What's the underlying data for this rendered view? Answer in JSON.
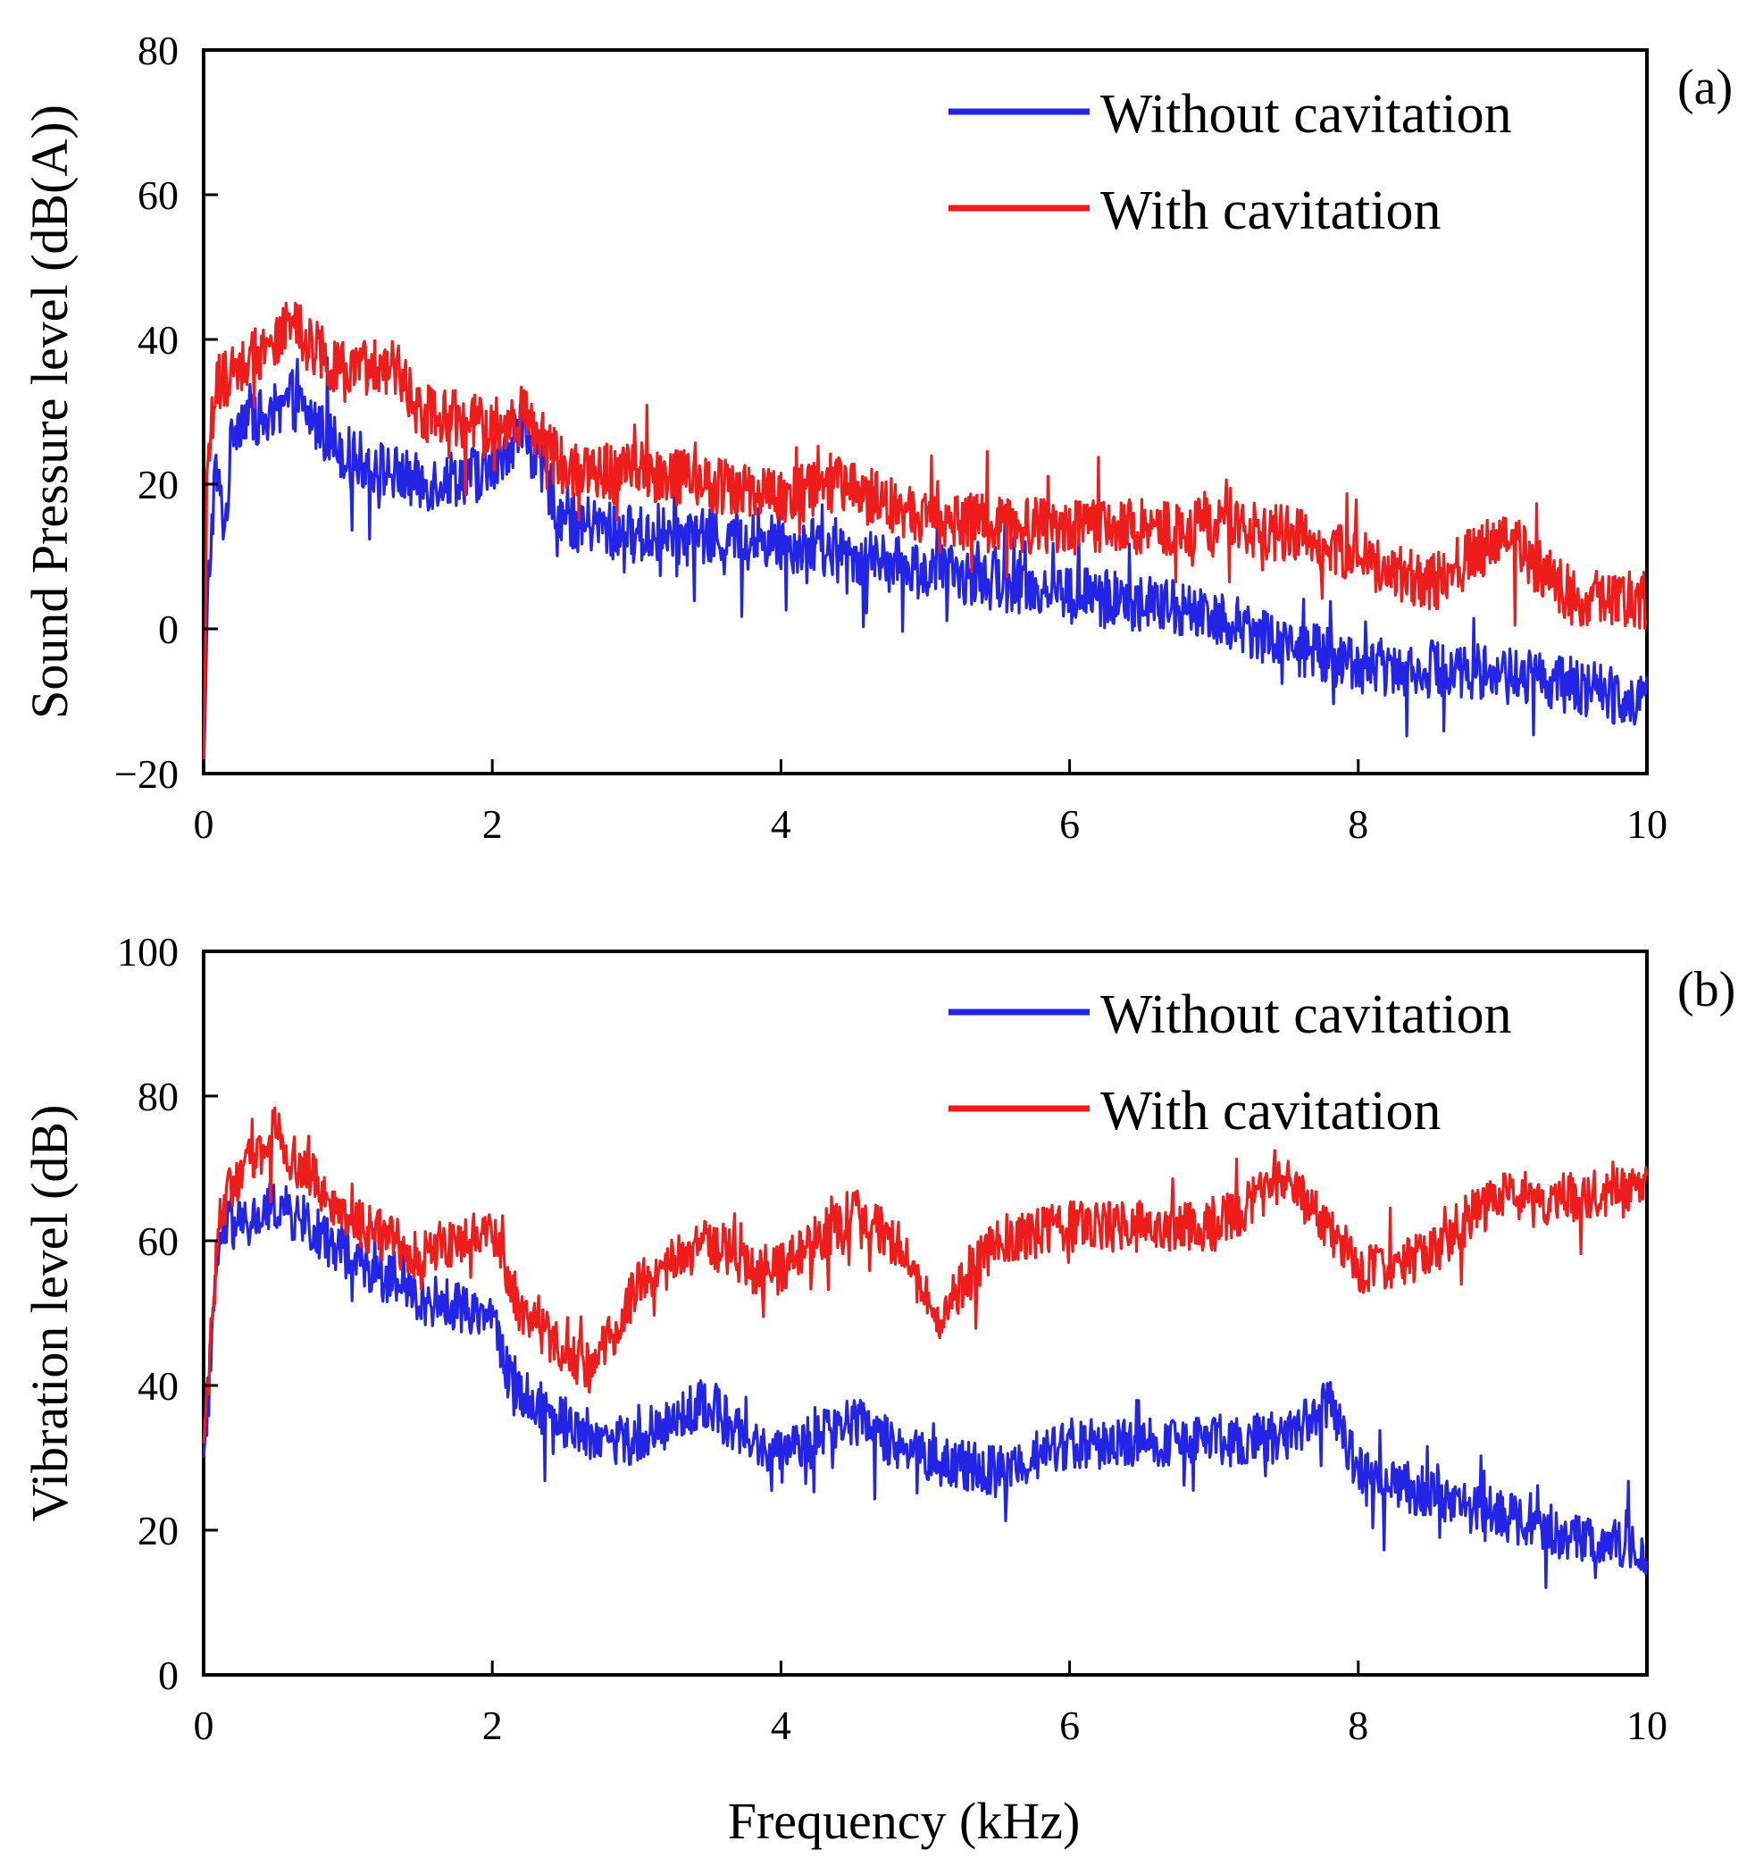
{
  "figure": {
    "xlabel": "Frequency (kHz)"
  },
  "chart_data": [
    {
      "type": "line",
      "panel_label": "(a)",
      "ylabel": "Sound Pressure level (dB(A))",
      "xlim": [
        0,
        10
      ],
      "ylim": [
        -20,
        80
      ],
      "xticks": [
        "0",
        "2",
        "4",
        "6",
        "8",
        "10"
      ],
      "yticks": [
        "−20",
        "0",
        "20",
        "40",
        "60",
        "80"
      ],
      "grid": false,
      "legend_position": "top-right",
      "series": [
        {
          "name": "Without cavitation",
          "color": "#2424e6",
          "noise": 4,
          "x": [
            0,
            0.03,
            0.08,
            0.15,
            0.2,
            0.3,
            0.5,
            0.6,
            1.0,
            1.5,
            2.0,
            2.2,
            2.5,
            3.0,
            4.0,
            5.0,
            6.0,
            7.0,
            7.5,
            8.0,
            9.0,
            10.0
          ],
          "y": [
            -20,
            5,
            22,
            14,
            28,
            30,
            28,
            32,
            24,
            20,
            22,
            28,
            15,
            13,
            12,
            8,
            5,
            2,
            -2,
            -5,
            -6,
            -10
          ]
        },
        {
          "name": "With cavitation",
          "color": "#ef1c1c",
          "noise": 4,
          "x": [
            0,
            0.03,
            0.1,
            0.2,
            0.5,
            0.6,
            1.0,
            1.3,
            1.5,
            2.0,
            2.2,
            2.5,
            3.0,
            4.0,
            4.4,
            5.0,
            6.0,
            7.0,
            7.5,
            8.0,
            8.5,
            9.0,
            9.5,
            10.0
          ],
          "y": [
            -20,
            25,
            34,
            36,
            40,
            42,
            35,
            37,
            30,
            28,
            30,
            22,
            22,
            18,
            20,
            15,
            14,
            14,
            13,
            10,
            6,
            13,
            4,
            4
          ]
        }
      ]
    },
    {
      "type": "line",
      "panel_label": "(b)",
      "ylabel": "Vibration level (dB)",
      "xlim": [
        0,
        10
      ],
      "ylim": [
        0,
        100
      ],
      "xticks": [
        "0",
        "2",
        "4",
        "6",
        "8",
        "10"
      ],
      "yticks": [
        "0",
        "20",
        "40",
        "60",
        "80",
        "100"
      ],
      "grid": false,
      "legend_position": "top-right",
      "series": [
        {
          "name": "Without cavitation",
          "color": "#2424e6",
          "noise": 3.5,
          "x": [
            0,
            0.1,
            0.15,
            0.3,
            0.5,
            1.0,
            1.5,
            2.0,
            2.1,
            2.3,
            2.7,
            3.0,
            3.5,
            3.7,
            4.0,
            4.5,
            5.0,
            5.5,
            6.0,
            7.0,
            7.5,
            7.8,
            8.0,
            8.5,
            9.0,
            9.5,
            10.0
          ],
          "y": [
            30,
            58,
            62,
            62,
            65,
            58,
            52,
            50,
            42,
            37,
            33,
            32,
            38,
            33,
            30,
            35,
            30,
            28,
            32,
            32,
            33,
            38,
            28,
            25,
            22,
            19,
            17
          ]
        },
        {
          "name": "With cavitation",
          "color": "#ef1c1c",
          "noise": 3.5,
          "x": [
            0,
            0.1,
            0.2,
            0.5,
            0.6,
            1.0,
            1.5,
            2.0,
            2.2,
            2.5,
            2.7,
            3.0,
            3.5,
            3.8,
            4.0,
            4.5,
            4.8,
            5.0,
            5.1,
            5.5,
            6.0,
            7.0,
            7.5,
            7.8,
            8.0,
            8.5,
            8.8,
            9.0,
            9.5,
            10.0
          ],
          "y": [
            32,
            62,
            68,
            75,
            72,
            63,
            58,
            62,
            50,
            45,
            42,
            54,
            60,
            56,
            56,
            64,
            60,
            52,
            50,
            60,
            62,
            62,
            68,
            62,
            56,
            58,
            64,
            66,
            66,
            67
          ]
        }
      ]
    }
  ]
}
